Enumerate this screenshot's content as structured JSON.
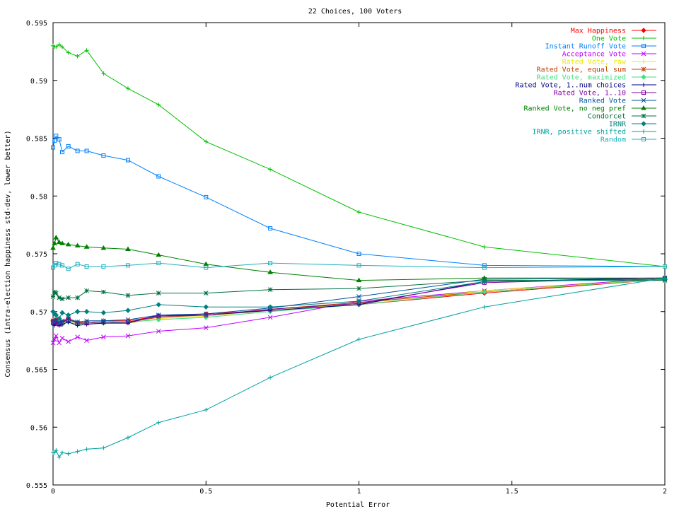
{
  "chart_data": {
    "type": "line",
    "title": "22 Choices, 100 Voters",
    "xlabel": "Potential Error",
    "ylabel": "Consensus (intra-election happiness std-dev, lower better)",
    "xlim": [
      0,
      2
    ],
    "ylim": [
      0.555,
      0.595
    ],
    "x_ticks": [
      0,
      0.5,
      1,
      1.5,
      2
    ],
    "x_tick_labels": [
      "0",
      "0.5",
      "1",
      "1.5",
      "2"
    ],
    "y_ticks": [
      0.555,
      0.56,
      0.565,
      0.57,
      0.575,
      0.58,
      0.585,
      0.59,
      0.595
    ],
    "y_tick_labels": [
      "0.555",
      "0.56",
      "0.565",
      "0.57",
      "0.575",
      "0.58",
      "0.585",
      "0.59",
      "0.595"
    ],
    "grid": false,
    "legend_position": "top-right",
    "x": [
      0,
      0.005,
      0.01,
      0.02,
      0.03,
      0.05,
      0.08,
      0.11,
      0.165,
      0.245,
      0.345,
      0.5,
      0.71,
      1,
      1.41,
      2
    ],
    "series": [
      {
        "name": "Max Happiness",
        "color": "#ff0000",
        "marker": "diamond",
        "values": [
          0.5692,
          0.5691,
          0.5693,
          0.569,
          0.5691,
          0.5694,
          0.569,
          0.5691,
          0.5692,
          0.5692,
          0.5696,
          0.5698,
          0.5701,
          0.5706,
          0.5716,
          0.5728
        ]
      },
      {
        "name": "One Vote",
        "color": "#00c000",
        "marker": "plus",
        "values": [
          0.593,
          0.5929,
          0.5929,
          0.5931,
          0.5929,
          0.5924,
          0.5921,
          0.5926,
          0.5906,
          0.5893,
          0.5879,
          0.5847,
          0.5823,
          0.5786,
          0.5756,
          0.5739
        ]
      },
      {
        "name": "Instant Runoff Vote",
        "color": "#0080ff",
        "marker": "square",
        "values": [
          0.5842,
          0.5848,
          0.5852,
          0.5849,
          0.5838,
          0.5843,
          0.5839,
          0.5839,
          0.5835,
          0.5831,
          0.5817,
          0.5799,
          0.5772,
          0.575,
          0.574,
          0.5739
        ]
      },
      {
        "name": "Acceptance Vote",
        "color": "#c000ff",
        "marker": "cross",
        "values": [
          0.5673,
          0.5676,
          0.5679,
          0.5673,
          0.5677,
          0.5674,
          0.5678,
          0.5675,
          0.5678,
          0.5679,
          0.5683,
          0.5686,
          0.5695,
          0.5709,
          0.5718,
          0.5729
        ]
      },
      {
        "name": "Rated Vote, raw",
        "color": "#e8e800",
        "marker": "plus",
        "values": [
          0.569,
          0.5691,
          0.569,
          0.5692,
          0.569,
          0.5692,
          0.569,
          0.5691,
          0.5692,
          0.569,
          0.5694,
          0.5696,
          0.5701,
          0.5707,
          0.5718,
          0.5728
        ]
      },
      {
        "name": "Rated Vote, equal sum",
        "color": "#c04000",
        "marker": "asterisk",
        "values": [
          0.5691,
          0.569,
          0.5692,
          0.5689,
          0.569,
          0.5693,
          0.5691,
          0.569,
          0.5691,
          0.5691,
          0.5695,
          0.5697,
          0.5702,
          0.5708,
          0.5717,
          0.5728
        ]
      },
      {
        "name": "Rated Vote, maximized",
        "color": "#40e080",
        "marker": "diamond",
        "values": [
          0.5689,
          0.569,
          0.5691,
          0.569,
          0.5689,
          0.5691,
          0.5689,
          0.569,
          0.569,
          0.5691,
          0.5693,
          0.5695,
          0.57,
          0.5706,
          0.5717,
          0.5728
        ]
      },
      {
        "name": "Rated Vote, 1..num choices",
        "color": "#000080",
        "marker": "plus",
        "values": [
          0.5689,
          0.5688,
          0.569,
          0.5688,
          0.5689,
          0.5691,
          0.5688,
          0.5689,
          0.569,
          0.569,
          0.5697,
          0.5697,
          0.5701,
          0.5706,
          0.5726,
          0.5729
        ]
      },
      {
        "name": "Rated Vote, 1..10",
        "color": "#8000a0",
        "marker": "square",
        "values": [
          0.5691,
          0.569,
          0.5692,
          0.5689,
          0.5691,
          0.5693,
          0.569,
          0.569,
          0.5691,
          0.5691,
          0.5696,
          0.5697,
          0.5702,
          0.5707,
          0.5725,
          0.5729
        ]
      },
      {
        "name": "Ranked Vote",
        "color": "#0050a0",
        "marker": "cross",
        "values": [
          0.5692,
          0.5691,
          0.5693,
          0.5691,
          0.5692,
          0.5694,
          0.5691,
          0.5692,
          0.5692,
          0.5693,
          0.5697,
          0.5698,
          0.5703,
          0.5713,
          0.5728,
          0.5729
        ]
      },
      {
        "name": "Ranked Vote, no neg pref",
        "color": "#008000",
        "marker": "triangle",
        "values": [
          0.5755,
          0.5759,
          0.5764,
          0.576,
          0.5759,
          0.5758,
          0.5757,
          0.5756,
          0.5755,
          0.5754,
          0.5749,
          0.5741,
          0.5734,
          0.5727,
          0.5729,
          0.5729
        ]
      },
      {
        "name": "Condorcet",
        "color": "#007040",
        "marker": "asterisk",
        "values": [
          0.5713,
          0.5717,
          0.5716,
          0.5712,
          0.5711,
          0.5712,
          0.5712,
          0.5718,
          0.5717,
          0.5714,
          0.5716,
          0.5716,
          0.5719,
          0.572,
          0.5727,
          0.5727
        ]
      },
      {
        "name": "IRNR",
        "color": "#008080",
        "marker": "diamond",
        "values": [
          0.57,
          0.5698,
          0.5697,
          0.5694,
          0.5699,
          0.5697,
          0.57,
          0.57,
          0.5699,
          0.5701,
          0.5706,
          0.5704,
          0.5704,
          0.5709,
          0.5726,
          0.5728
        ]
      },
      {
        "name": "IRNR, positive shifted",
        "color": "#00a0a0",
        "marker": "plus",
        "values": [
          0.5578,
          0.5578,
          0.558,
          0.5574,
          0.5578,
          0.5577,
          0.5579,
          0.5581,
          0.5582,
          0.5591,
          0.5604,
          0.5615,
          0.5643,
          0.5676,
          0.5704,
          0.5729
        ]
      },
      {
        "name": "Random",
        "color": "#20b0c0",
        "marker": "square",
        "values": [
          0.5738,
          0.574,
          0.5742,
          0.5741,
          0.574,
          0.5737,
          0.5741,
          0.5739,
          0.5739,
          0.574,
          0.5742,
          0.5738,
          0.5742,
          0.574,
          0.5738,
          0.5739
        ]
      }
    ]
  }
}
